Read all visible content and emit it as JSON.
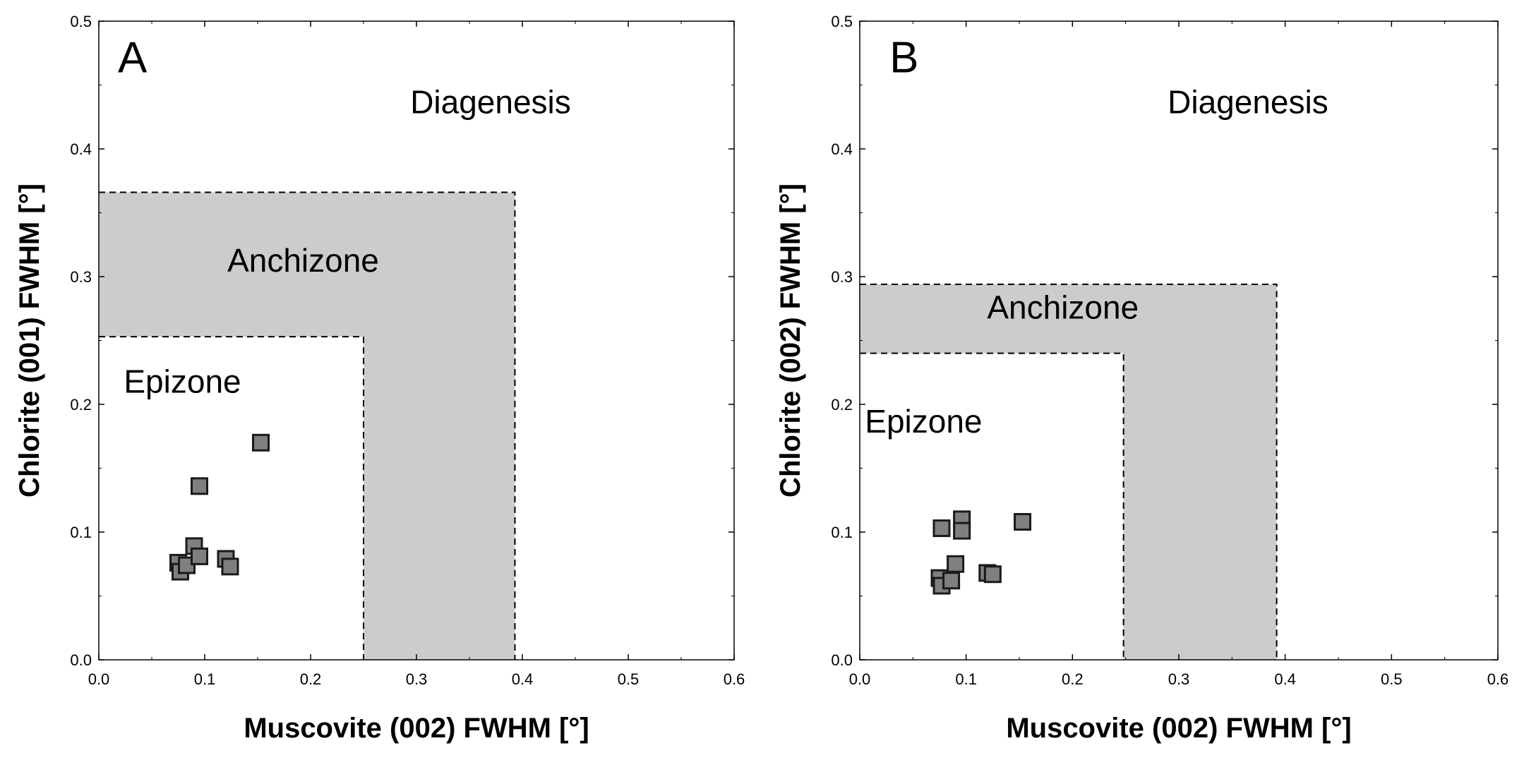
{
  "chart_data": [
    {
      "type": "scatter",
      "panel_label": "A",
      "xlabel": "Muscovite (002) FWHM [°]",
      "ylabel": "Chlorite (001) FWHM [°]",
      "xlim": [
        0.0,
        0.6
      ],
      "ylim": [
        0.0,
        0.5
      ],
      "x_ticks": [
        "0.0",
        "0.1",
        "0.2",
        "0.3",
        "0.4",
        "0.5",
        "0.6"
      ],
      "y_ticks": [
        "0.0",
        "0.1",
        "0.2",
        "0.3",
        "0.4",
        "0.5"
      ],
      "grid": false,
      "zones": {
        "diagenesis": "Diagenesis",
        "anchizone": "Anchizone",
        "epizone": "Epizone",
        "epizone_upper_x": 0.25,
        "epizone_upper_y": 0.253,
        "anchizone_upper_x": 0.393,
        "anchizone_upper_y": 0.366
      },
      "points": [
        {
          "x": 0.075,
          "y": 0.076
        },
        {
          "x": 0.077,
          "y": 0.069
        },
        {
          "x": 0.083,
          "y": 0.074
        },
        {
          "x": 0.09,
          "y": 0.089
        },
        {
          "x": 0.095,
          "y": 0.081
        },
        {
          "x": 0.095,
          "y": 0.136
        },
        {
          "x": 0.12,
          "y": 0.079
        },
        {
          "x": 0.124,
          "y": 0.073
        },
        {
          "x": 0.153,
          "y": 0.17
        }
      ]
    },
    {
      "type": "scatter",
      "panel_label": "B",
      "xlabel": "Muscovite (002) FWHM [°]",
      "ylabel": "Chlorite (002) FWHM [°]",
      "xlim": [
        0.0,
        0.6
      ],
      "ylim": [
        0.0,
        0.5
      ],
      "x_ticks": [
        "0.0",
        "0.1",
        "0.2",
        "0.3",
        "0.4",
        "0.5",
        "0.6"
      ],
      "y_ticks": [
        "0.0",
        "0.1",
        "0.2",
        "0.3",
        "0.4",
        "0.5"
      ],
      "grid": false,
      "zones": {
        "diagenesis": "Diagenesis",
        "anchizone": "Anchizone",
        "epizone": "Epizone",
        "epizone_upper_x": 0.248,
        "epizone_upper_y": 0.24,
        "anchizone_upper_x": 0.392,
        "anchizone_upper_y": 0.294
      },
      "points": [
        {
          "x": 0.075,
          "y": 0.064
        },
        {
          "x": 0.077,
          "y": 0.058
        },
        {
          "x": 0.077,
          "y": 0.103
        },
        {
          "x": 0.086,
          "y": 0.062
        },
        {
          "x": 0.09,
          "y": 0.075
        },
        {
          "x": 0.096,
          "y": 0.11
        },
        {
          "x": 0.096,
          "y": 0.101
        },
        {
          "x": 0.12,
          "y": 0.068
        },
        {
          "x": 0.125,
          "y": 0.067
        },
        {
          "x": 0.153,
          "y": 0.108
        }
      ]
    }
  ]
}
